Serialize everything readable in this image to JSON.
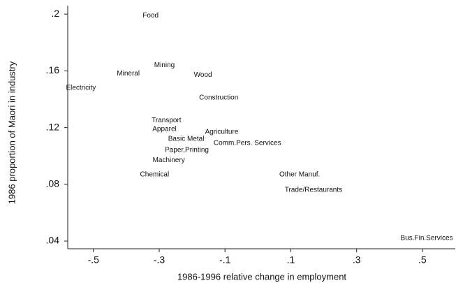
{
  "chart_data": {
    "type": "scatter",
    "x_label": "1986-1996 relative change in employment",
    "y_label": "1986 proportion of Maori in industry",
    "labels": [
      "Food",
      "Mining",
      "Mineral",
      "Wood",
      "Electricity",
      "Construction",
      "Transport",
      "Apparel",
      "Agriculture",
      "Basic Metal",
      "Comm.Pers. Services",
      "Paper,Printing",
      "Machinery",
      "Chemical",
      "Other Manuf.",
      "Trade/Restaurants",
      "Bus.Fin.Services"
    ],
    "x": [
      -0.326,
      -0.284,
      -0.394,
      -0.167,
      -0.538,
      -0.119,
      -0.278,
      -0.284,
      -0.11,
      -0.218,
      -0.032,
      -0.216,
      -0.271,
      -0.314,
      0.127,
      0.169,
      0.513
    ],
    "values": [
      0.199,
      0.164,
      0.158,
      0.157,
      0.148,
      0.141,
      0.125,
      0.119,
      0.117,
      0.112,
      0.109,
      0.104,
      0.097,
      0.087,
      0.087,
      0.076,
      0.042
    ],
    "xlim": [
      -0.578,
      0.6
    ],
    "ylim": [
      0.0346,
      0.206
    ],
    "xticks": [
      {
        "value": -0.5,
        "label": "-.5"
      },
      {
        "value": -0.3,
        "label": "-.3"
      },
      {
        "value": -0.1,
        "label": "-.1"
      },
      {
        "value": 0.1,
        "label": ".1"
      },
      {
        "value": 0.3,
        "label": ".3"
      },
      {
        "value": 0.5,
        "label": ".5"
      }
    ],
    "yticks": [
      {
        "value": 0.04,
        "label": ".04"
      },
      {
        "value": 0.08,
        "label": ".08"
      },
      {
        "value": 0.12,
        "label": ".12"
      },
      {
        "value": 0.16,
        "label": ".16"
      },
      {
        "value": 0.2,
        "label": ".2"
      }
    ]
  }
}
